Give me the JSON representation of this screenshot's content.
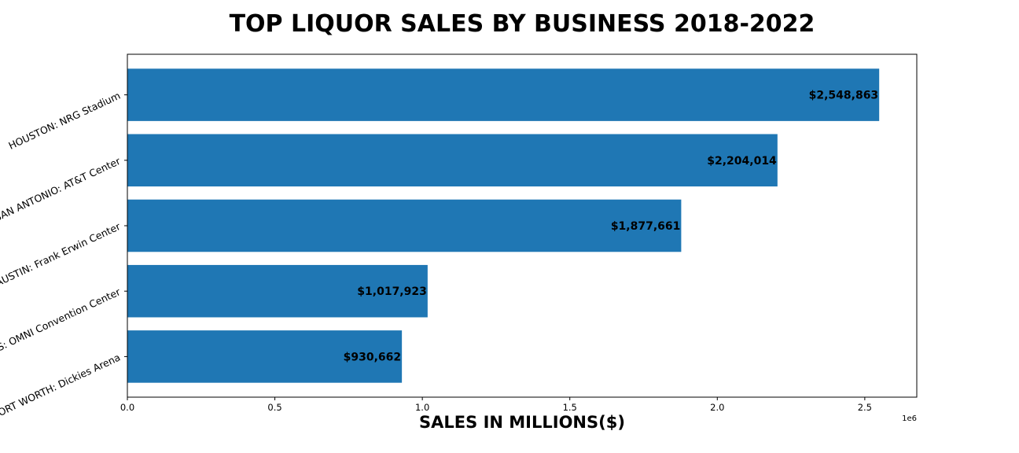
{
  "chart_data": {
    "type": "bar",
    "orientation": "horizontal",
    "title": "TOP LIQUOR SALES BY BUSINESS 2018-2022",
    "xlabel": "SALES IN MILLIONS($)",
    "ylabel": "",
    "x_offset_label": "1e6",
    "categories": [
      "HOUSTON: NRG Stadium",
      "SAN ANTONIO: AT&T Center",
      "AUSTIN: Frank Erwin Center",
      "DALLAS: OMNI Convention Center",
      "FORT WORTH: Dickies Arena"
    ],
    "values": [
      2548863,
      2204014,
      1877661,
      1017923,
      930662
    ],
    "data_labels": [
      "$2,548,863",
      "$2,204,014",
      "$1,877,661",
      "$1,017,923",
      "$930,662"
    ],
    "xlim": [
      0,
      2676306
    ],
    "xticks": [
      0,
      500000,
      1000000,
      1500000,
      2000000,
      2500000
    ],
    "xtick_labels": [
      "0.0",
      "0.5",
      "1.0",
      "1.5",
      "2.0",
      "2.5"
    ],
    "bar_color": "#1f77b4",
    "grid": false,
    "legend": "none"
  }
}
